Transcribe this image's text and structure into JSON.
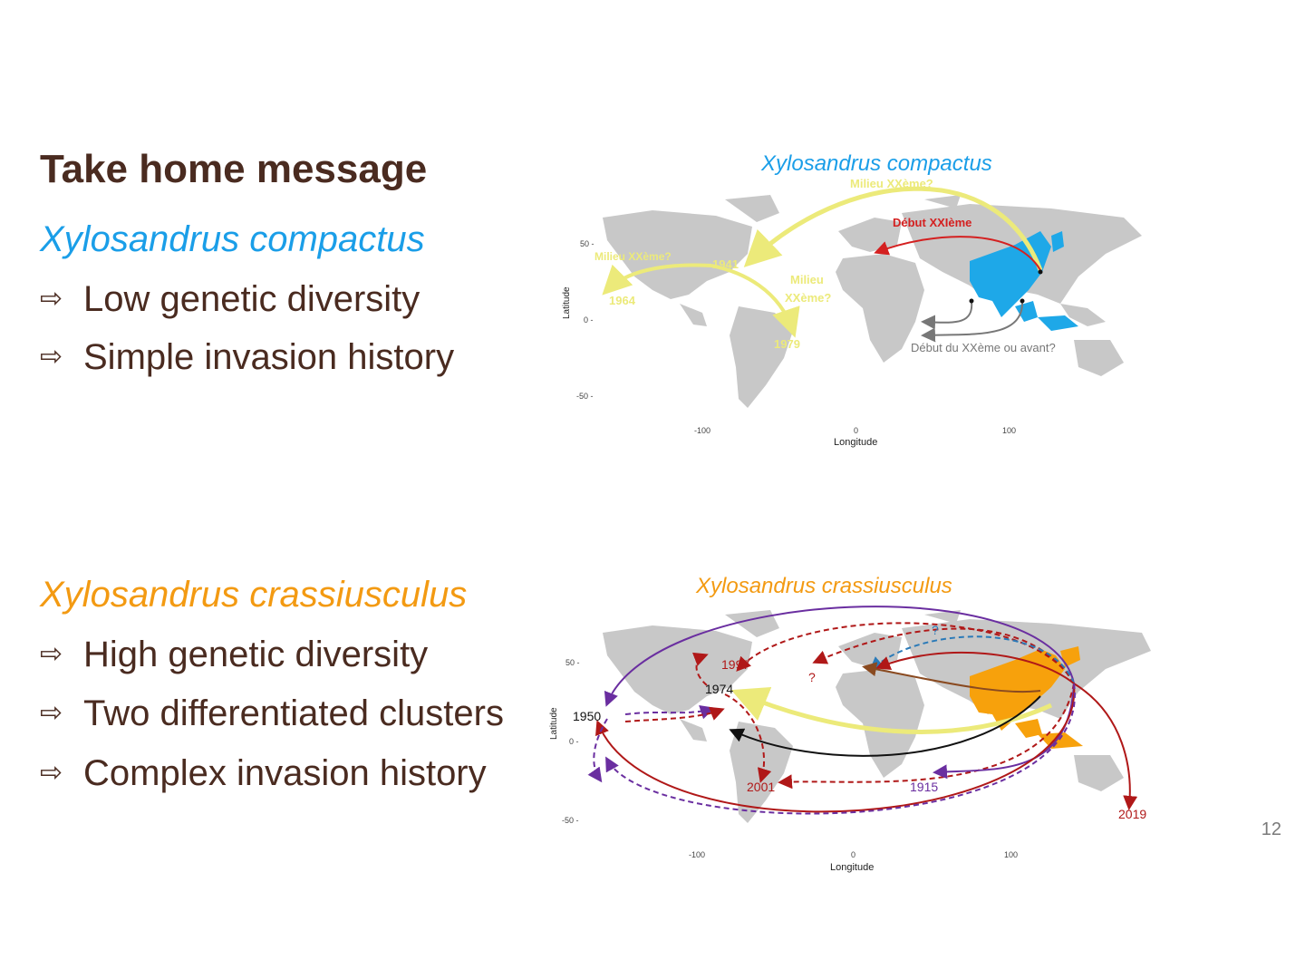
{
  "slide": {
    "title": "Take home message",
    "page_number": "12",
    "colors": {
      "title": "#4a2b20",
      "compactus": "#1a9ee8",
      "crassiusculus": "#f39a12"
    }
  },
  "left": {
    "species1": "Xylosandrus compactus",
    "bullets1": [
      "Low genetic diversity",
      "Simple invasion history"
    ],
    "species2": "Xylosandrus crassiusculus",
    "bullets2": [
      "High genetic diversity",
      "Two differentiated clusters",
      "Complex invasion history"
    ],
    "arrow_glyph": "⇨"
  },
  "map1": {
    "title": "Xylosandrus compactus",
    "ylabel": "Latitude",
    "xlabel": "Longitude",
    "yticks": [
      "50 -",
      "0 -",
      "-50 -"
    ],
    "xticks": [
      "-100",
      "0",
      "100"
    ],
    "labels": {
      "milieu_top": "Milieu XXème?",
      "debut_xxi": "Début XXIème",
      "milieu_left": "Milieu XXème?",
      "y1941": "1941",
      "y1964": "1964",
      "milieu_mid1": "Milieu",
      "milieu_mid2": "XXème?",
      "y1979": "1979",
      "debut_xx": "Début du XXème ou avant?"
    }
  },
  "map2": {
    "title": "Xylosandrus crassiusculus",
    "ylabel": "Latitude",
    "xlabel": "Longitude",
    "yticks": [
      "50 -",
      "0 -",
      "-50 -"
    ],
    "xticks": [
      "-100",
      "0",
      "100"
    ],
    "labels": {
      "y1997": "1997",
      "y1974": "1974",
      "y1950": "1950",
      "y2001": "2001",
      "y1915": "1915",
      "y2019": "2019",
      "q1": "?",
      "q2": "?"
    }
  }
}
